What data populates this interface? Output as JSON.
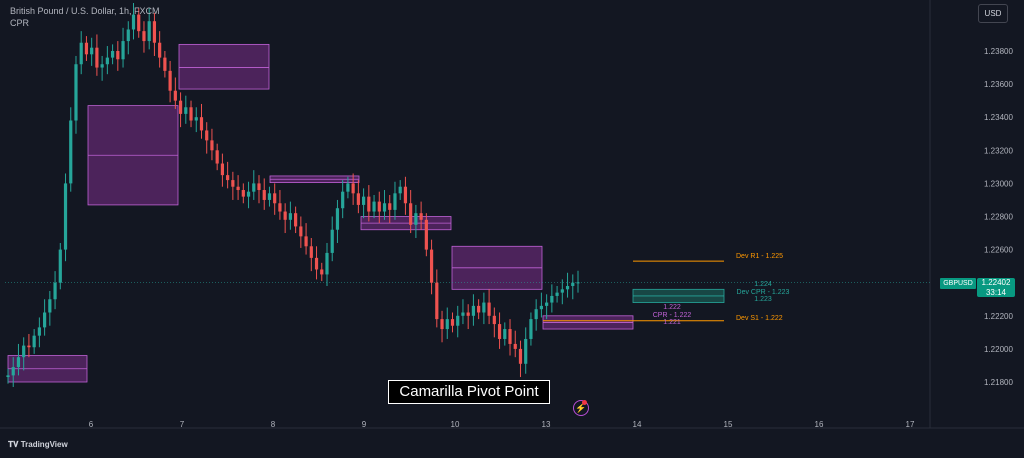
{
  "header": {
    "title": "British Pound / U.S. Dollar, 1h, FXCM",
    "indicator": "CPR"
  },
  "currency_button": "USD",
  "price_badge": {
    "symbol": "GBPUSD",
    "price": "1.22402",
    "countdown": "33:14"
  },
  "caption": "Camarilla Pivot Point",
  "brand": "TradingView",
  "icons": {
    "replay": "lightning-icon",
    "logo": "tradingview-logo-icon"
  },
  "colors": {
    "background": "#131722",
    "up": "#26a69a",
    "down": "#ef5350",
    "cpr_fill": "#7b2d8b",
    "cpr_line": "#c062d6",
    "dev_cpr": "#26a69a",
    "dev_level": "#ff9800"
  },
  "chart_data": {
    "type": "candlestick",
    "y_ticks": [
      "1.23800",
      "1.23600",
      "1.23400",
      "1.23200",
      "1.23000",
      "1.22800",
      "1.22600",
      "1.22400",
      "1.22200",
      "1.22000",
      "1.21800"
    ],
    "x_ticks": [
      "6",
      "7",
      "8",
      "9",
      "10",
      "13",
      "14",
      "15",
      "16",
      "17"
    ],
    "ylim": [
      1.217,
      1.2405
    ],
    "current_price": 1.22402,
    "close_series": [
      1.2184,
      1.2189,
      1.2195,
      1.2202,
      1.2201,
      1.2208,
      1.2213,
      1.2222,
      1.223,
      1.224,
      1.226,
      1.23,
      1.2338,
      1.2372,
      1.2385,
      1.2378,
      1.2382,
      1.237,
      1.2372,
      1.2376,
      1.238,
      1.2375,
      1.2386,
      1.2393,
      1.2402,
      1.2392,
      1.2386,
      1.2398,
      1.2385,
      1.2376,
      1.2368,
      1.2356,
      1.235,
      1.2342,
      1.2346,
      1.2338,
      1.234,
      1.2332,
      1.2326,
      1.232,
      1.2312,
      1.2305,
      1.2302,
      1.2298,
      1.2296,
      1.2292,
      1.2295,
      1.23,
      1.2296,
      1.229,
      1.2294,
      1.2288,
      1.2283,
      1.2278,
      1.2282,
      1.2274,
      1.2268,
      1.2262,
      1.2255,
      1.2248,
      1.2245,
      1.2258,
      1.2272,
      1.2285,
      1.2295,
      1.23,
      1.2294,
      1.2287,
      1.2292,
      1.2283,
      1.2289,
      1.2283,
      1.2288,
      1.2284,
      1.2294,
      1.2298,
      1.2288,
      1.2275,
      1.2282,
      1.2278,
      1.226,
      1.224,
      1.2218,
      1.2212,
      1.2218,
      1.2214,
      1.222,
      1.2222,
      1.222,
      1.2226,
      1.2222,
      1.2228,
      1.222,
      1.2215,
      1.2206,
      1.2212,
      1.2203,
      1.22,
      1.2191,
      1.2206,
      1.2218,
      1.2224,
      1.2226,
      1.2228,
      1.2232,
      1.2234,
      1.2236,
      1.2238,
      1.224,
      1.22402
    ],
    "cpr_zones": [
      {
        "day": "5",
        "top": 1.2196,
        "pivot": 1.2188,
        "bottom": 1.218
      },
      {
        "day": "6",
        "top": 1.2347,
        "pivot": 1.2317,
        "bottom": 1.2287
      },
      {
        "day": "7",
        "top": 1.2384,
        "pivot": 1.237,
        "bottom": 1.2357
      },
      {
        "day": "8",
        "top": 1.23045,
        "pivot": 1.23025,
        "bottom": 1.23005
      },
      {
        "day": "9",
        "top": 1.228,
        "pivot": 1.2276,
        "bottom": 1.2272
      },
      {
        "day": "10",
        "top": 1.2262,
        "pivot": 1.2249,
        "bottom": 1.2236
      },
      {
        "day": "13",
        "top": 1.222,
        "pivot": 1.2216,
        "bottom": 1.2212
      }
    ],
    "cpr_labels": [
      "1.222",
      "CPR - 1.222",
      "1.221"
    ],
    "dev_cpr": {
      "top": 1.2236,
      "bottom": 1.2228,
      "labels": [
        "1.224",
        "Dev CPR - 1.223",
        "1.223"
      ]
    },
    "dev_r1": {
      "value": 1.2253,
      "label": "Dev R1 - 1.225"
    },
    "dev_s1": {
      "value": 1.2217,
      "label": "Dev S1 - 1.222"
    }
  }
}
